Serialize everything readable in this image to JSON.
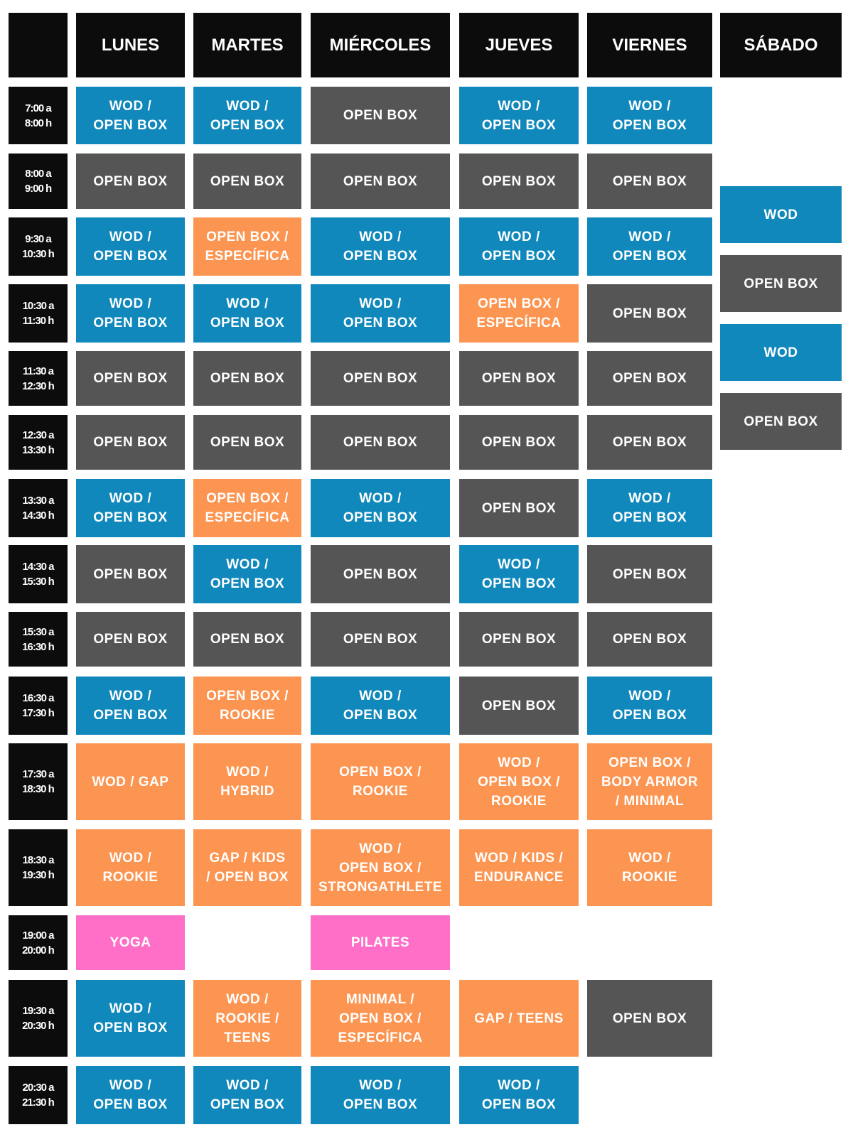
{
  "colors": {
    "header_bg": "#0c0c0c",
    "blue": "#1188bb",
    "gray": "#555555",
    "orange": "#fb9551",
    "pink": "#ff6ec7"
  },
  "days": [
    "",
    "LUNES",
    "MARTES",
    "MIÉRCOLES",
    "JUEVES",
    "VIERNES",
    "SÁBADO"
  ],
  "times": [
    "7:00 a\n8:00 h",
    "8:00 a\n9:00 h",
    "9:30 a\n10:30 h",
    "10:30 a\n11:30 h",
    "11:30 a\n12:30 h",
    "12:30 a\n13:30 h",
    "13:30 a\n14:30 h",
    "14:30 a\n15:30 h",
    "15:30 a\n16:30 h",
    "16:30 a\n17:30 h",
    "17:30 a\n18:30 h",
    "18:30 a\n19:30 h",
    "19:00 a\n20:00 h",
    "19:30 a\n20:30 h",
    "20:30 a\n21:30 h"
  ],
  "grid": [
    [
      {
        "t": "WOD /\nOPEN BOX",
        "c": "blue"
      },
      {
        "t": "WOD /\nOPEN BOX",
        "c": "blue"
      },
      {
        "t": "OPEN BOX",
        "c": "gray"
      },
      {
        "t": "WOD /\nOPEN BOX",
        "c": "blue"
      },
      {
        "t": "WOD /\nOPEN BOX",
        "c": "blue"
      }
    ],
    [
      {
        "t": "OPEN BOX",
        "c": "gray"
      },
      {
        "t": "OPEN BOX",
        "c": "gray"
      },
      {
        "t": "OPEN BOX",
        "c": "gray"
      },
      {
        "t": "OPEN BOX",
        "c": "gray"
      },
      {
        "t": "OPEN BOX",
        "c": "gray"
      }
    ],
    [
      {
        "t": "WOD /\nOPEN BOX",
        "c": "blue"
      },
      {
        "t": "OPEN BOX /\nESPECÍFICA",
        "c": "orange"
      },
      {
        "t": "WOD /\nOPEN BOX",
        "c": "blue"
      },
      {
        "t": "WOD /\nOPEN BOX",
        "c": "blue"
      },
      {
        "t": "WOD /\nOPEN BOX",
        "c": "blue"
      }
    ],
    [
      {
        "t": "WOD /\nOPEN BOX",
        "c": "blue"
      },
      {
        "t": "WOD /\nOPEN BOX",
        "c": "blue"
      },
      {
        "t": "WOD /\nOPEN BOX",
        "c": "blue"
      },
      {
        "t": "OPEN BOX /\nESPECÍFICA",
        "c": "orange"
      },
      {
        "t": "OPEN BOX",
        "c": "gray"
      }
    ],
    [
      {
        "t": "OPEN BOX",
        "c": "gray"
      },
      {
        "t": "OPEN BOX",
        "c": "gray"
      },
      {
        "t": "OPEN BOX",
        "c": "gray"
      },
      {
        "t": "OPEN BOX",
        "c": "gray"
      },
      {
        "t": "OPEN BOX",
        "c": "gray"
      }
    ],
    [
      {
        "t": "OPEN BOX",
        "c": "gray"
      },
      {
        "t": "OPEN BOX",
        "c": "gray"
      },
      {
        "t": "OPEN BOX",
        "c": "gray"
      },
      {
        "t": "OPEN BOX",
        "c": "gray"
      },
      {
        "t": "OPEN BOX",
        "c": "gray"
      }
    ],
    [
      {
        "t": "WOD /\nOPEN BOX",
        "c": "blue"
      },
      {
        "t": "OPEN BOX /\nESPECÍFICA",
        "c": "orange"
      },
      {
        "t": "WOD /\nOPEN BOX",
        "c": "blue"
      },
      {
        "t": "OPEN BOX",
        "c": "gray"
      },
      {
        "t": "WOD /\nOPEN BOX",
        "c": "blue"
      }
    ],
    [
      {
        "t": "OPEN BOX",
        "c": "gray"
      },
      {
        "t": "WOD /\nOPEN BOX",
        "c": "blue"
      },
      {
        "t": "OPEN BOX",
        "c": "gray"
      },
      {
        "t": "WOD /\nOPEN BOX",
        "c": "blue"
      },
      {
        "t": "OPEN BOX",
        "c": "gray"
      }
    ],
    [
      {
        "t": "OPEN BOX",
        "c": "gray"
      },
      {
        "t": "OPEN BOX",
        "c": "gray"
      },
      {
        "t": "OPEN BOX",
        "c": "gray"
      },
      {
        "t": "OPEN BOX",
        "c": "gray"
      },
      {
        "t": "OPEN BOX",
        "c": "gray"
      }
    ],
    [
      {
        "t": "WOD /\nOPEN BOX",
        "c": "blue"
      },
      {
        "t": "OPEN BOX /\nROOKIE",
        "c": "orange"
      },
      {
        "t": "WOD /\nOPEN BOX",
        "c": "blue"
      },
      {
        "t": "OPEN BOX",
        "c": "gray"
      },
      {
        "t": "WOD /\nOPEN BOX",
        "c": "blue"
      }
    ],
    [
      {
        "t": "WOD / GAP",
        "c": "orange"
      },
      {
        "t": "WOD /\nHYBRID",
        "c": "orange"
      },
      {
        "t": "OPEN BOX /\nROOKIE",
        "c": "orange"
      },
      {
        "t": "WOD /\nOPEN BOX /\nROOKIE",
        "c": "orange"
      },
      {
        "t": "OPEN BOX /\nBODY ARMOR\n/ MINIMAL",
        "c": "orange"
      }
    ],
    [
      {
        "t": "WOD /\nROOKIE",
        "c": "orange"
      },
      {
        "t": "GAP / KIDS\n/ OPEN BOX",
        "c": "orange"
      },
      {
        "t": "WOD /\nOPEN BOX /\nSTRONGATHLETE",
        "c": "orange"
      },
      {
        "t": "WOD / KIDS /\nENDURANCE",
        "c": "orange"
      },
      {
        "t": "WOD /\nROOKIE",
        "c": "orange"
      }
    ],
    [
      {
        "t": "YOGA",
        "c": "pink"
      },
      null,
      {
        "t": "PILATES",
        "c": "pink"
      },
      null,
      null
    ],
    [
      {
        "t": "WOD /\nOPEN BOX",
        "c": "blue"
      },
      {
        "t": "WOD /\nROOKIE /\nTEENS",
        "c": "orange"
      },
      {
        "t": "MINIMAL /\nOPEN BOX /\nESPECÍFICA",
        "c": "orange"
      },
      {
        "t": "GAP / TEENS",
        "c": "orange"
      },
      {
        "t": "OPEN BOX",
        "c": "gray"
      }
    ],
    [
      {
        "t": "WOD /\nOPEN BOX",
        "c": "blue"
      },
      {
        "t": "WOD /\nOPEN BOX",
        "c": "blue"
      },
      {
        "t": "WOD /\nOPEN BOX",
        "c": "blue"
      },
      {
        "t": "WOD /\nOPEN BOX",
        "c": "blue"
      },
      null
    ]
  ],
  "saturday": [
    {
      "t": "WOD",
      "c": "blue"
    },
    {
      "t": "OPEN BOX",
      "c": "gray"
    },
    {
      "t": "WOD",
      "c": "blue"
    },
    {
      "t": "OPEN BOX",
      "c": "gray"
    }
  ]
}
